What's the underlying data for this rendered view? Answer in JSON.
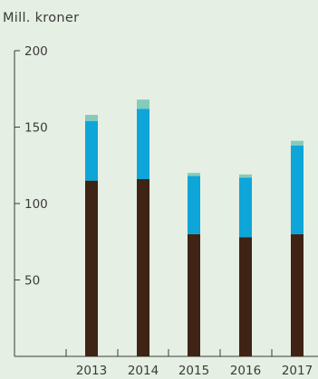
{
  "chart_data": {
    "type": "bar",
    "stacked": true,
    "ylabel": "Mill. kroner",
    "categories": [
      "2013",
      "2014",
      "2015",
      "2016",
      "2017"
    ],
    "ylim": [
      0,
      200
    ],
    "yticks": [
      50,
      100,
      150,
      200
    ],
    "grid": false,
    "series": [
      {
        "values": [
          115,
          116,
          80,
          78,
          80
        ]
      },
      {
        "values": [
          39,
          46,
          38,
          39,
          58
        ]
      },
      {
        "values": [
          4,
          6,
          2,
          2,
          3
        ]
      }
    ],
    "colors": [
      "#3f2314",
      "#0ea5d8",
      "#85cbbc"
    ]
  },
  "colors": {
    "background": "#e5efe3",
    "axis": "#3b3b3b"
  }
}
